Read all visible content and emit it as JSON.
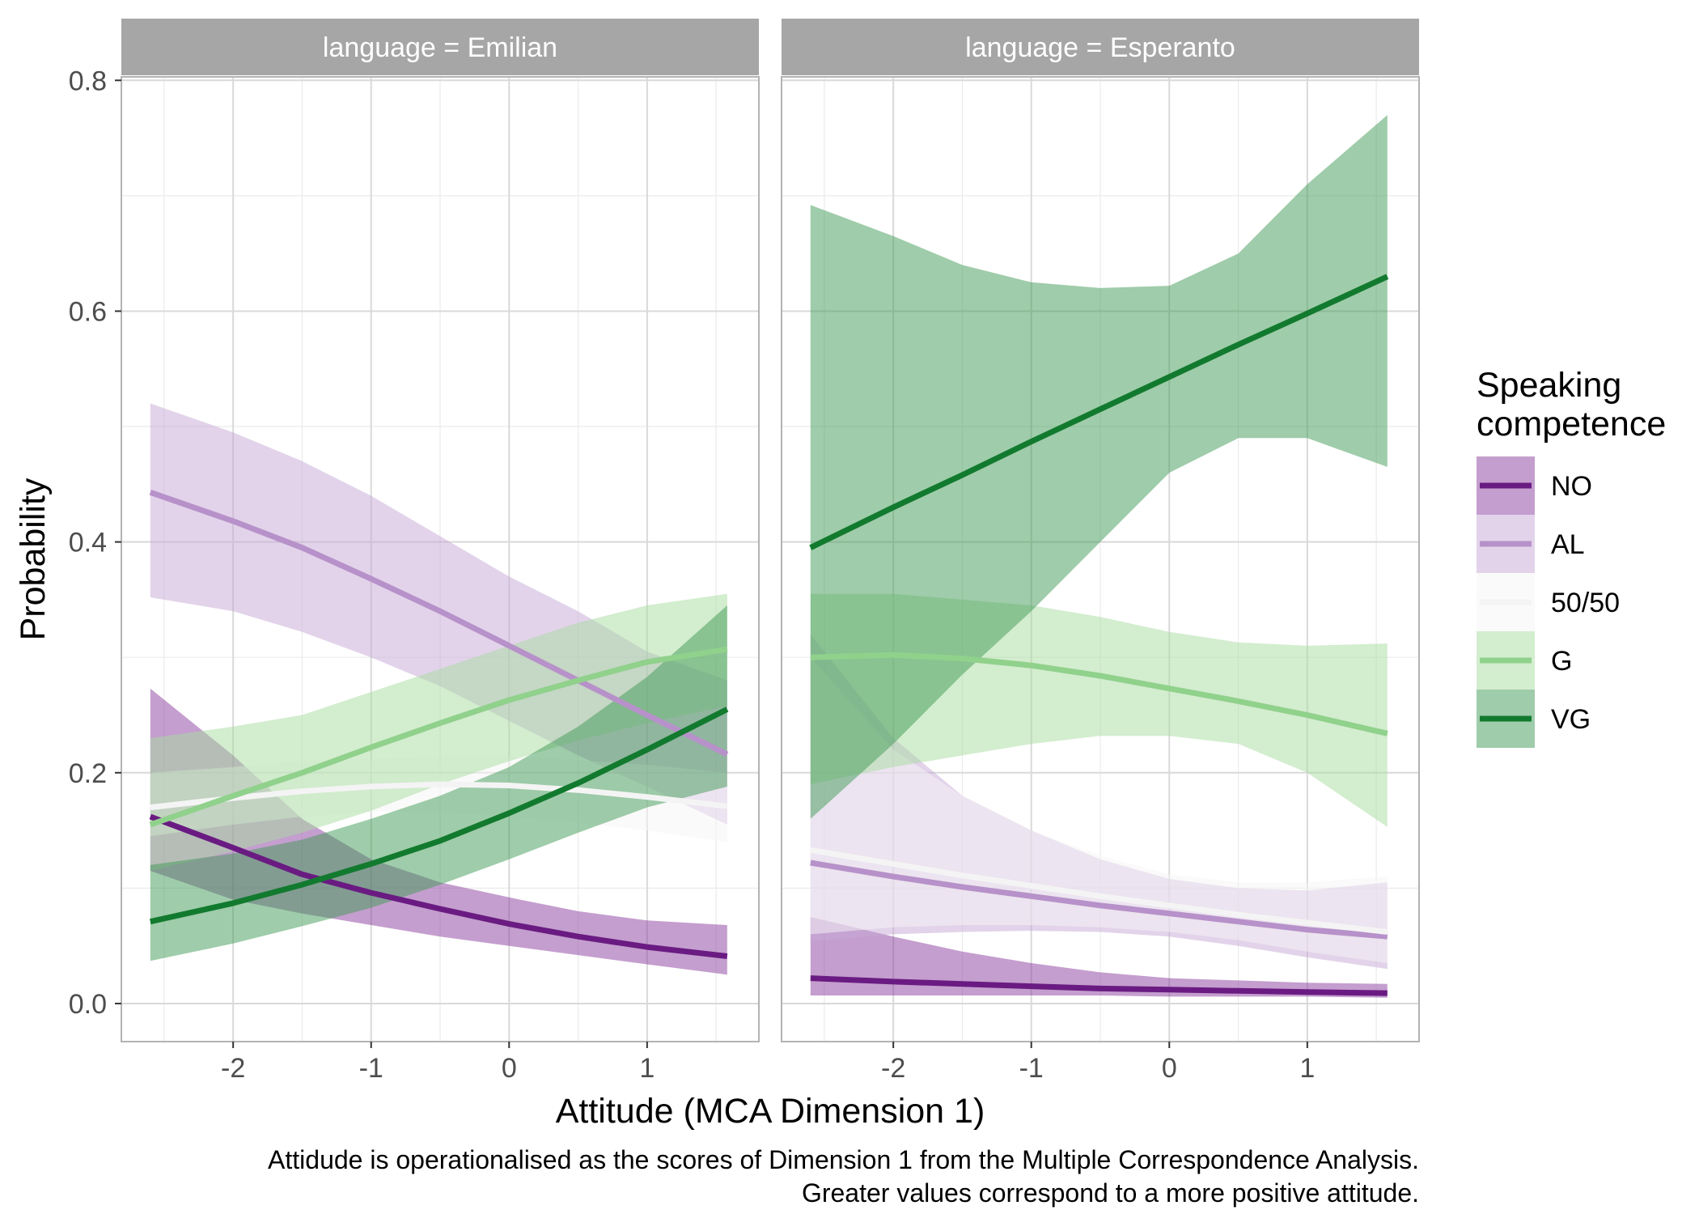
{
  "chart_data": {
    "type": "line",
    "panel_variable": "language",
    "panels": [
      {
        "label": "language = Emilian",
        "series": [
          {
            "name": "NO",
            "x": [
              -2.6,
              -2.0,
              -1.5,
              -1.0,
              -0.5,
              0.0,
              0.5,
              1.0,
              1.58
            ],
            "y": [
              0.162,
              0.135,
              0.112,
              0.096,
              0.082,
              0.069,
              0.058,
              0.049,
              0.041
            ],
            "lower": [
              0.115,
              0.09,
              0.078,
              0.068,
              0.058,
              0.05,
              0.042,
              0.034,
              0.025
            ],
            "upper": [
              0.273,
              0.215,
              0.16,
              0.125,
              0.105,
              0.092,
              0.08,
              0.072,
              0.068
            ]
          },
          {
            "name": "AL",
            "x": [
              -2.6,
              -2.0,
              -1.5,
              -1.0,
              -0.5,
              0.0,
              0.5,
              1.0,
              1.58
            ],
            "y": [
              0.443,
              0.418,
              0.395,
              0.368,
              0.34,
              0.31,
              0.28,
              0.25,
              0.216
            ],
            "lower": [
              0.352,
              0.34,
              0.322,
              0.3,
              0.275,
              0.245,
              0.215,
              0.188,
              0.155
            ],
            "upper": [
              0.52,
              0.495,
              0.47,
              0.44,
              0.405,
              0.37,
              0.34,
              0.305,
              0.28
            ]
          },
          {
            "name": "50/50",
            "x": [
              -2.6,
              -2.0,
              -1.5,
              -1.0,
              -0.5,
              0.0,
              0.5,
              1.0,
              1.58
            ],
            "y": [
              0.17,
              0.178,
              0.184,
              0.188,
              0.19,
              0.189,
              0.185,
              0.179,
              0.171
            ],
            "lower": [
              0.145,
              0.155,
              0.162,
              0.166,
              0.166,
              0.162,
              0.157,
              0.15,
              0.14
            ],
            "upper": [
              0.2,
              0.205,
              0.21,
              0.212,
              0.214,
              0.214,
              0.211,
              0.207,
              0.2
            ]
          },
          {
            "name": "G",
            "x": [
              -2.6,
              -2.0,
              -1.5,
              -1.0,
              -0.5,
              0.0,
              0.5,
              1.0,
              1.58
            ],
            "y": [
              0.155,
              0.18,
              0.2,
              0.222,
              0.243,
              0.263,
              0.28,
              0.296,
              0.307
            ],
            "lower": [
              0.115,
              0.132,
              0.148,
              0.167,
              0.19,
              0.21,
              0.228,
              0.243,
              0.258
            ],
            "upper": [
              0.23,
              0.24,
              0.25,
              0.27,
              0.29,
              0.31,
              0.33,
              0.345,
              0.355
            ]
          },
          {
            "name": "VG",
            "x": [
              -2.6,
              -2.0,
              -1.5,
              -1.0,
              -0.5,
              0.0,
              0.5,
              1.0,
              1.58
            ],
            "y": [
              0.071,
              0.087,
              0.103,
              0.121,
              0.141,
              0.165,
              0.191,
              0.22,
              0.255
            ],
            "lower": [
              0.037,
              0.052,
              0.067,
              0.083,
              0.103,
              0.125,
              0.148,
              0.17,
              0.188
            ],
            "upper": [
              0.12,
              0.13,
              0.142,
              0.16,
              0.18,
              0.205,
              0.24,
              0.283,
              0.345
            ]
          }
        ]
      },
      {
        "label": "language = Esperanto",
        "series": [
          {
            "name": "NO",
            "x": [
              -2.6,
              -2.0,
              -1.5,
              -1.0,
              -0.5,
              0.0,
              0.5,
              1.0,
              1.58
            ],
            "y": [
              0.022,
              0.019,
              0.017,
              0.015,
              0.013,
              0.012,
              0.011,
              0.01,
              0.009
            ],
            "lower": [
              0.007,
              0.007,
              0.007,
              0.007,
              0.007,
              0.006,
              0.006,
              0.006,
              0.005
            ],
            "upper": [
              0.075,
              0.058,
              0.045,
              0.035,
              0.027,
              0.022,
              0.02,
              0.018,
              0.017
            ]
          },
          {
            "name": "AL",
            "x": [
              -2.6,
              -2.0,
              -1.5,
              -1.0,
              -0.5,
              0.0,
              0.5,
              1.0,
              1.58
            ],
            "y": [
              0.122,
              0.11,
              0.101,
              0.093,
              0.085,
              0.078,
              0.071,
              0.064,
              0.058
            ],
            "lower": [
              0.054,
              0.06,
              0.062,
              0.063,
              0.062,
              0.058,
              0.05,
              0.04,
              0.03
            ],
            "upper": [
              0.32,
              0.23,
              0.18,
              0.15,
              0.125,
              0.108,
              0.1,
              0.098,
              0.105
            ]
          },
          {
            "name": "50/50",
            "x": [
              -2.6,
              -2.0,
              -1.5,
              -1.0,
              -0.5,
              0.0,
              0.5,
              1.0,
              1.58
            ],
            "y": [
              0.133,
              0.121,
              0.111,
              0.102,
              0.093,
              0.085,
              0.077,
              0.07,
              0.062
            ],
            "lower": [
              0.06,
              0.066,
              0.068,
              0.068,
              0.066,
              0.062,
              0.055,
              0.045,
              0.035
            ],
            "upper": [
              0.3,
              0.22,
              0.18,
              0.15,
              0.128,
              0.112,
              0.105,
              0.105,
              0.11
            ]
          },
          {
            "name": "G",
            "x": [
              -2.6,
              -2.0,
              -1.5,
              -1.0,
              -0.5,
              0.0,
              0.5,
              1.0,
              1.58
            ],
            "y": [
              0.3,
              0.302,
              0.299,
              0.293,
              0.284,
              0.273,
              0.262,
              0.25,
              0.234
            ],
            "lower": [
              0.19,
              0.205,
              0.215,
              0.225,
              0.232,
              0.232,
              0.225,
              0.2,
              0.153
            ],
            "upper": [
              0.355,
              0.355,
              0.35,
              0.345,
              0.335,
              0.322,
              0.313,
              0.31,
              0.312
            ]
          },
          {
            "name": "VG",
            "x": [
              -2.6,
              -2.0,
              -1.5,
              -1.0,
              -0.5,
              0.0,
              0.5,
              1.0,
              1.58
            ],
            "y": [
              0.395,
              0.43,
              0.458,
              0.487,
              0.515,
              0.543,
              0.571,
              0.598,
              0.63
            ],
            "lower": [
              0.16,
              0.225,
              0.285,
              0.34,
              0.4,
              0.46,
              0.49,
              0.49,
              0.465
            ],
            "upper": [
              0.692,
              0.665,
              0.64,
              0.625,
              0.62,
              0.622,
              0.65,
              0.71,
              0.77
            ]
          }
        ]
      }
    ],
    "xlabel": "Attitude (MCA Dimension 1)",
    "ylabel": "Probability",
    "xlim": [
      -2.81,
      1.81
    ],
    "ylim": [
      -0.033,
      0.803
    ],
    "x_ticks": [
      -2,
      -1,
      0,
      1
    ],
    "x_tick_labels": [
      "-2",
      "-1",
      "0",
      "1"
    ],
    "y_ticks": [
      0.0,
      0.2,
      0.4,
      0.6,
      0.8
    ],
    "y_tick_labels": [
      "0.0",
      "0.2",
      "0.4",
      "0.6",
      "0.8"
    ],
    "grid": true,
    "legend": {
      "position": "right",
      "title_lines": [
        "Speaking",
        "competence"
      ],
      "entries": [
        "NO",
        "AL",
        "50/50",
        "G",
        "VG"
      ]
    },
    "series_colors": {
      "NO": "#6a1b82",
      "AL": "#b791c9",
      "50/50": "#f4f4f4",
      "G": "#90d18c",
      "VG": "#127a2e"
    },
    "band_colors": {
      "NO": "#8a3d9e",
      "AL": "#c5a7d6",
      "50/50": "#f5f5f5",
      "G": "#a7dca0",
      "VG": "#3f9a55"
    },
    "band_opacity": 0.5,
    "caption_lines": [
      "Attidude is operationalised as the scores of Dimension 1 from the Multiple Correspondence Analysis.",
      "Greater values correspond to a more positive attitude."
    ]
  }
}
